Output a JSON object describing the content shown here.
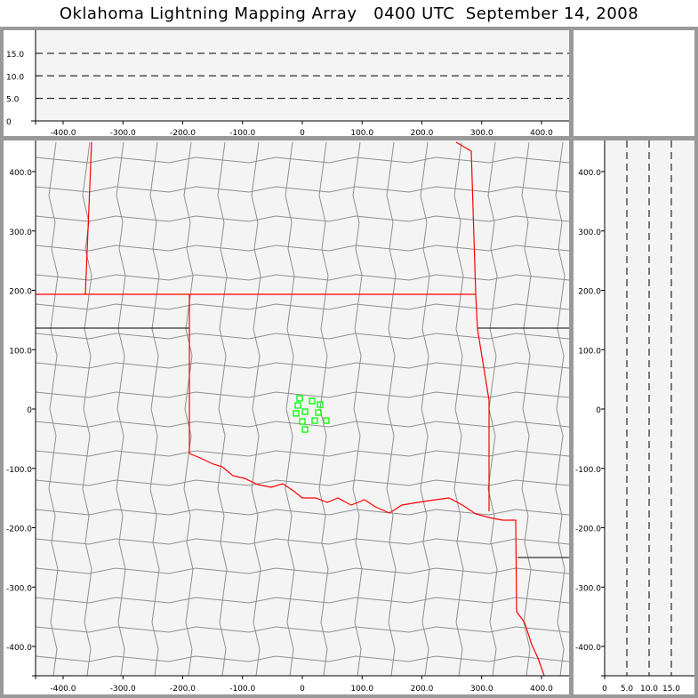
{
  "title": "Oklahoma Lightning Mapping Array   0400 UTC  September 14, 2008",
  "colors": {
    "background": "#f4f4f4",
    "state_border": "#ff0000",
    "county_border": "#909090",
    "source_marker": "#00ff00",
    "frame": "#999999"
  },
  "top_panel": {
    "x_ticks": [
      "-400.0",
      "-300.0",
      "-200.0",
      "-100.0",
      "0",
      "100.0",
      "200.0",
      "300.0",
      "400.0"
    ],
    "y_ticks": [
      "0",
      "5.0",
      "10.0",
      "15.0"
    ],
    "dashed_levels": [
      5,
      10,
      15
    ]
  },
  "map_panel": {
    "x_ticks": [
      "-400.0",
      "-300.0",
      "-200.0",
      "-100.0",
      "0",
      "100.0",
      "200.0",
      "300.0",
      "400.0"
    ],
    "y_ticks": [
      "-400.0",
      "-300.0",
      "-200.0",
      "-100.0",
      "0",
      "100.0",
      "200.0",
      "300.0",
      "400.0"
    ],
    "sources_km": [
      [
        -4.5,
        18
      ],
      [
        16.4,
        13.5
      ],
      [
        29.7,
        7.5
      ],
      [
        -7.4,
        6
      ],
      [
        4.5,
        -4.5
      ],
      [
        -10.4,
        -7.5
      ],
      [
        26.8,
        -6
      ],
      [
        0,
        -21
      ],
      [
        20.8,
        -19.5
      ],
      [
        40.1,
        -19.5
      ],
      [
        4.5,
        -34.5
      ]
    ]
  },
  "side_panel": {
    "x_ticks": [
      "0",
      "5.0",
      "10.0",
      "15.0"
    ],
    "y_ticks": [
      "-400.0",
      "-300.0",
      "-200.0",
      "-100.0",
      "0",
      "100.0",
      "200.0",
      "300.0",
      "400.0"
    ],
    "dashed_levels": [
      5,
      10,
      15
    ]
  }
}
